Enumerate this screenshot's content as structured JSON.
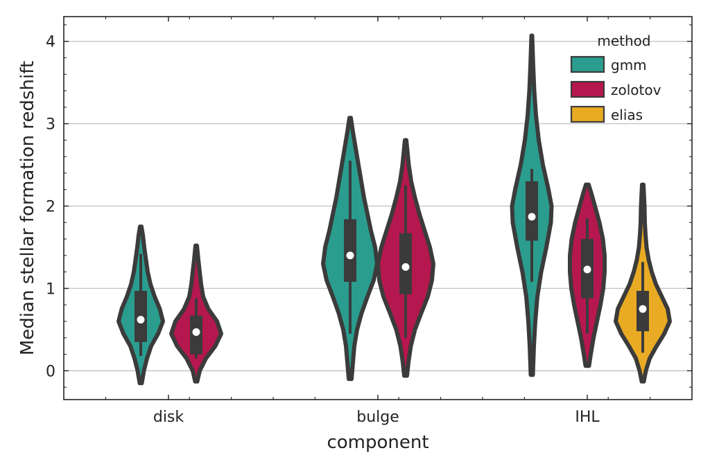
{
  "chart_data": {
    "type": "violin",
    "xlabel": "component",
    "ylabel": "Median stellar formation redshift",
    "categories": [
      "disk",
      "bulge",
      "IHL"
    ],
    "ylim": [
      -0.35,
      4.3
    ],
    "yticks": [
      0,
      1,
      2,
      3,
      4
    ],
    "grid": "horizontal",
    "legend": {
      "title": "method",
      "position": "top-right"
    },
    "series": [
      {
        "name": "gmm",
        "color": "#2a9d8f",
        "violins": [
          {
            "category": "disk",
            "min": -0.15,
            "max": 1.75,
            "q1": 0.35,
            "median": 0.62,
            "q3": 0.97,
            "whisker_low": 0.18,
            "whisker_high": 1.42,
            "profile": [
              [
                -0.15,
                0.03
              ],
              [
                0.0,
                0.09
              ],
              [
                0.15,
                0.18
              ],
              [
                0.3,
                0.3
              ],
              [
                0.45,
                0.5
              ],
              [
                0.6,
                0.64
              ],
              [
                0.75,
                0.55
              ],
              [
                0.9,
                0.4
              ],
              [
                1.05,
                0.28
              ],
              [
                1.2,
                0.2
              ],
              [
                1.35,
                0.15
              ],
              [
                1.5,
                0.1
              ],
              [
                1.65,
                0.06
              ],
              [
                1.75,
                0.02
              ]
            ]
          },
          {
            "category": "bulge",
            "min": -0.1,
            "max": 3.07,
            "q1": 1.08,
            "median": 1.4,
            "q3": 1.84,
            "whisker_low": 0.45,
            "whisker_high": 2.55,
            "profile": [
              [
                -0.1,
                0.04
              ],
              [
                0.1,
                0.08
              ],
              [
                0.3,
                0.12
              ],
              [
                0.5,
                0.2
              ],
              [
                0.7,
                0.33
              ],
              [
                0.9,
                0.5
              ],
              [
                1.1,
                0.68
              ],
              [
                1.3,
                0.78
              ],
              [
                1.5,
                0.72
              ],
              [
                1.7,
                0.6
              ],
              [
                1.9,
                0.5
              ],
              [
                2.1,
                0.4
              ],
              [
                2.3,
                0.32
              ],
              [
                2.5,
                0.24
              ],
              [
                2.7,
                0.16
              ],
              [
                2.9,
                0.08
              ],
              [
                3.07,
                0.02
              ]
            ]
          },
          {
            "category": "IHL",
            "min": -0.05,
            "max": 4.07,
            "q1": 1.58,
            "median": 1.87,
            "q3": 2.3,
            "whisker_low": 1.08,
            "whisker_high": 2.45,
            "profile": [
              [
                -0.05,
                0.03
              ],
              [
                0.3,
                0.06
              ],
              [
                0.6,
                0.1
              ],
              [
                0.9,
                0.16
              ],
              [
                1.2,
                0.27
              ],
              [
                1.5,
                0.42
              ],
              [
                1.8,
                0.55
              ],
              [
                2.0,
                0.57
              ],
              [
                2.2,
                0.48
              ],
              [
                2.5,
                0.32
              ],
              [
                2.8,
                0.2
              ],
              [
                3.1,
                0.12
              ],
              [
                3.4,
                0.07
              ],
              [
                3.7,
                0.04
              ],
              [
                4.07,
                0.01
              ]
            ]
          }
        ]
      },
      {
        "name": "zolotov",
        "color": "#b5174f",
        "violins": [
          {
            "category": "disk",
            "min": -0.13,
            "max": 1.52,
            "q1": 0.2,
            "median": 0.47,
            "q3": 0.67,
            "whisker_low": 0.15,
            "whisker_high": 0.88,
            "profile": [
              [
                -0.13,
                0.03
              ],
              [
                0.0,
                0.1
              ],
              [
                0.15,
                0.28
              ],
              [
                0.3,
                0.55
              ],
              [
                0.45,
                0.72
              ],
              [
                0.6,
                0.6
              ],
              [
                0.75,
                0.35
              ],
              [
                0.9,
                0.2
              ],
              [
                1.05,
                0.14
              ],
              [
                1.2,
                0.1
              ],
              [
                1.35,
                0.06
              ],
              [
                1.52,
                0.02
              ]
            ]
          },
          {
            "category": "bulge",
            "min": -0.06,
            "max": 2.8,
            "q1": 0.93,
            "median": 1.26,
            "q3": 1.67,
            "whisker_low": 0.4,
            "whisker_high": 2.25,
            "profile": [
              [
                -0.06,
                0.04
              ],
              [
                0.1,
                0.08
              ],
              [
                0.3,
                0.15
              ],
              [
                0.5,
                0.27
              ],
              [
                0.7,
                0.45
              ],
              [
                0.9,
                0.64
              ],
              [
                1.1,
                0.76
              ],
              [
                1.3,
                0.8
              ],
              [
                1.5,
                0.7
              ],
              [
                1.7,
                0.55
              ],
              [
                1.9,
                0.4
              ],
              [
                2.1,
                0.27
              ],
              [
                2.3,
                0.16
              ],
              [
                2.5,
                0.09
              ],
              [
                2.8,
                0.02
              ]
            ]
          },
          {
            "category": "IHL",
            "min": 0.06,
            "max": 2.26,
            "q1": 0.88,
            "median": 1.23,
            "q3": 1.6,
            "whisker_low": 0.45,
            "whisker_high": 1.85,
            "profile": [
              [
                0.06,
                0.05
              ],
              [
                0.2,
                0.1
              ],
              [
                0.4,
                0.18
              ],
              [
                0.6,
                0.28
              ],
              [
                0.8,
                0.38
              ],
              [
                1.0,
                0.46
              ],
              [
                1.2,
                0.5
              ],
              [
                1.4,
                0.5
              ],
              [
                1.6,
                0.45
              ],
              [
                1.8,
                0.35
              ],
              [
                2.0,
                0.22
              ],
              [
                2.15,
                0.12
              ],
              [
                2.26,
                0.04
              ]
            ]
          }
        ]
      },
      {
        "name": "elias",
        "color": "#e9ab23",
        "violins": [
          {
            "category": "IHL",
            "min": -0.13,
            "max": 2.26,
            "q1": 0.48,
            "median": 0.75,
            "q3": 0.97,
            "whisker_low": 0.22,
            "whisker_high": 1.32,
            "profile": [
              [
                -0.13,
                0.03
              ],
              [
                0.0,
                0.09
              ],
              [
                0.15,
                0.2
              ],
              [
                0.3,
                0.4
              ],
              [
                0.45,
                0.62
              ],
              [
                0.6,
                0.78
              ],
              [
                0.75,
                0.72
              ],
              [
                0.9,
                0.55
              ],
              [
                1.05,
                0.38
              ],
              [
                1.2,
                0.26
              ],
              [
                1.35,
                0.17
              ],
              [
                1.5,
                0.11
              ],
              [
                1.65,
                0.08
              ],
              [
                1.8,
                0.06
              ],
              [
                2.0,
                0.05
              ],
              [
                2.26,
                0.02
              ]
            ]
          }
        ]
      }
    ]
  }
}
